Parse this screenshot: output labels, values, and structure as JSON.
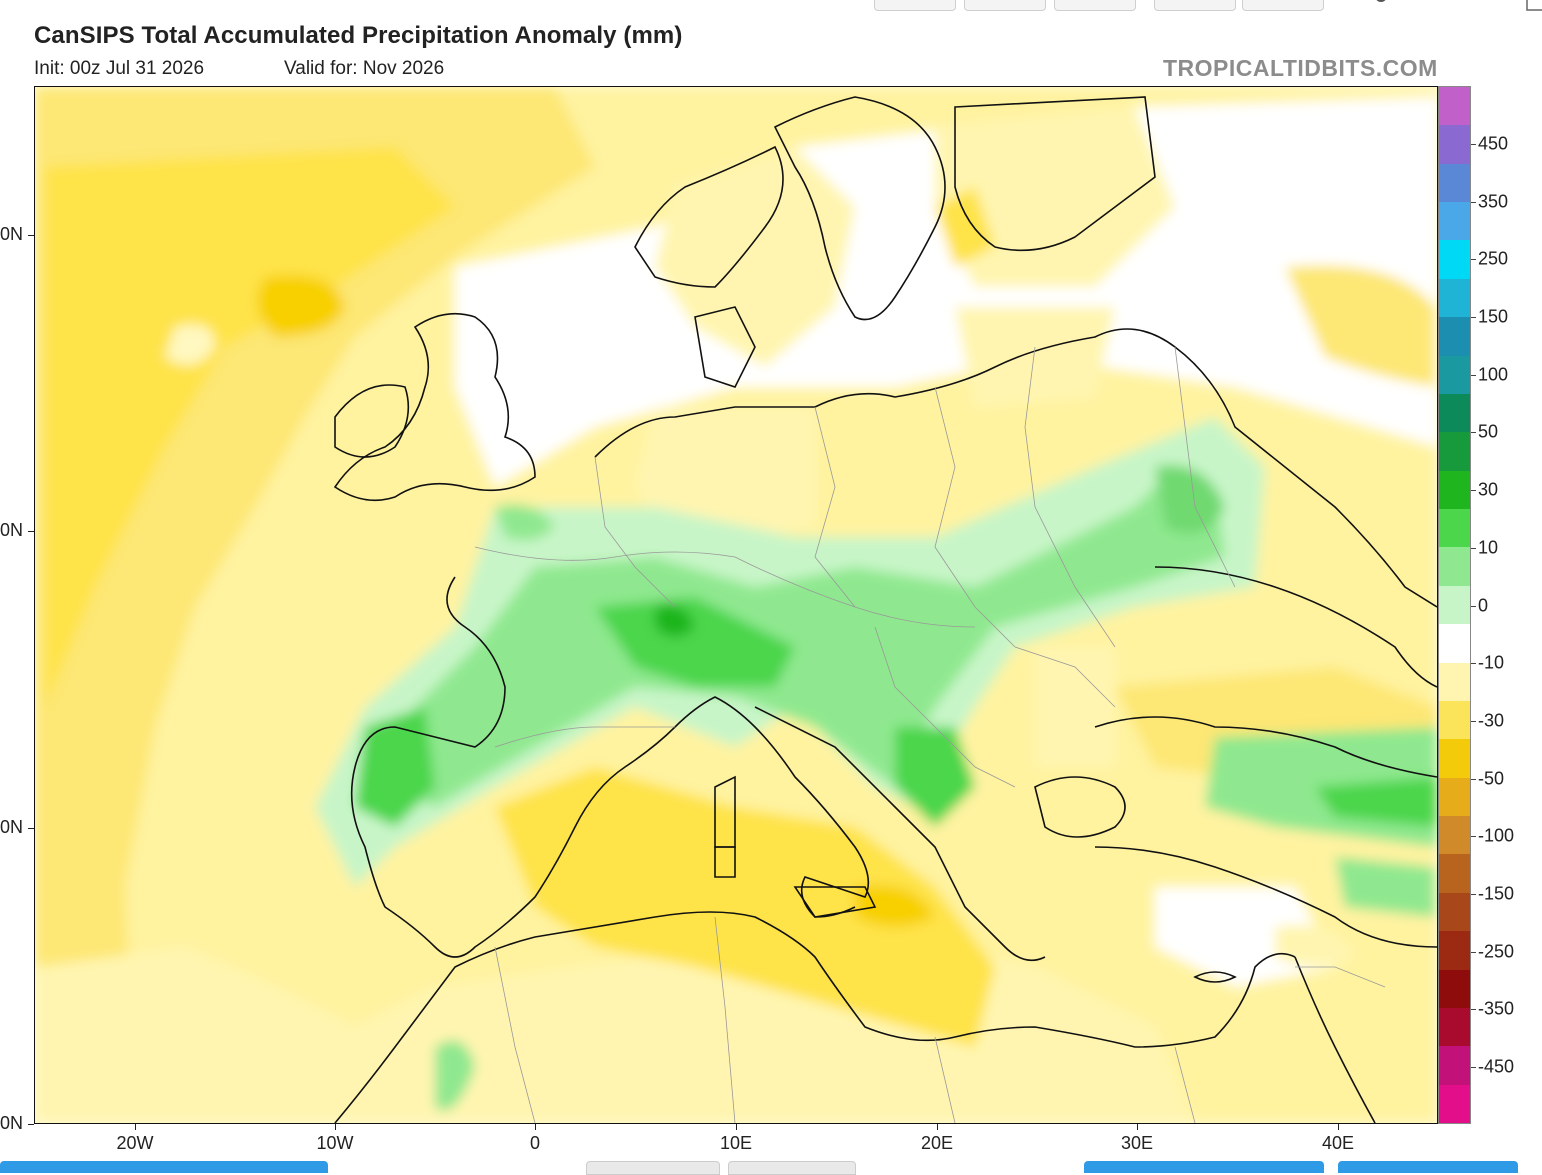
{
  "header": {
    "title": "CanSIPS Total Accumulated Precipitation Anomaly (mm)",
    "init": "Init: 00z Jul 31 2026",
    "valid": "Valid for: Nov 2026",
    "credit": "TROPICALTIDBITS.COM"
  },
  "lat_labels": [
    "0N",
    "0N",
    "0N",
    "0N"
  ],
  "lon_labels": [
    "20W",
    "10W",
    "0",
    "10E",
    "20E",
    "30E",
    "40E"
  ],
  "colorbar": {
    "labels": [
      "450",
      "350",
      "250",
      "150",
      "100",
      "50",
      "30",
      "10",
      "0",
      "-10",
      "-30",
      "-50",
      "-100",
      "-150",
      "-250",
      "-350",
      "-450"
    ],
    "colors": [
      "#e30f8a",
      "#c2127a",
      "#a80b2d",
      "#8e0c0c",
      "#9c2a12",
      "#a84719",
      "#b8641f",
      "#d18a2a",
      "#e7ac1a",
      "#f4cb0a",
      "#fbe45a",
      "#fff5b0",
      "#ffffff",
      "#c8f5c8",
      "#8fe88f",
      "#4cd64c",
      "#1fb51f",
      "#169a3c",
      "#0c8a5a",
      "#1a9aa0",
      "#1c8fb0",
      "#1fb3d6",
      "#00d9f5",
      "#4aa8e8",
      "#5b88d6",
      "#8a6ad0",
      "#c060c8"
    ]
  },
  "colors": {
    "green": "#6fd96f",
    "light_green": "#c8f5c8",
    "yellow": "#fbe45a",
    "light_yellow": "#fff5b0",
    "white": "#ffffff"
  }
}
